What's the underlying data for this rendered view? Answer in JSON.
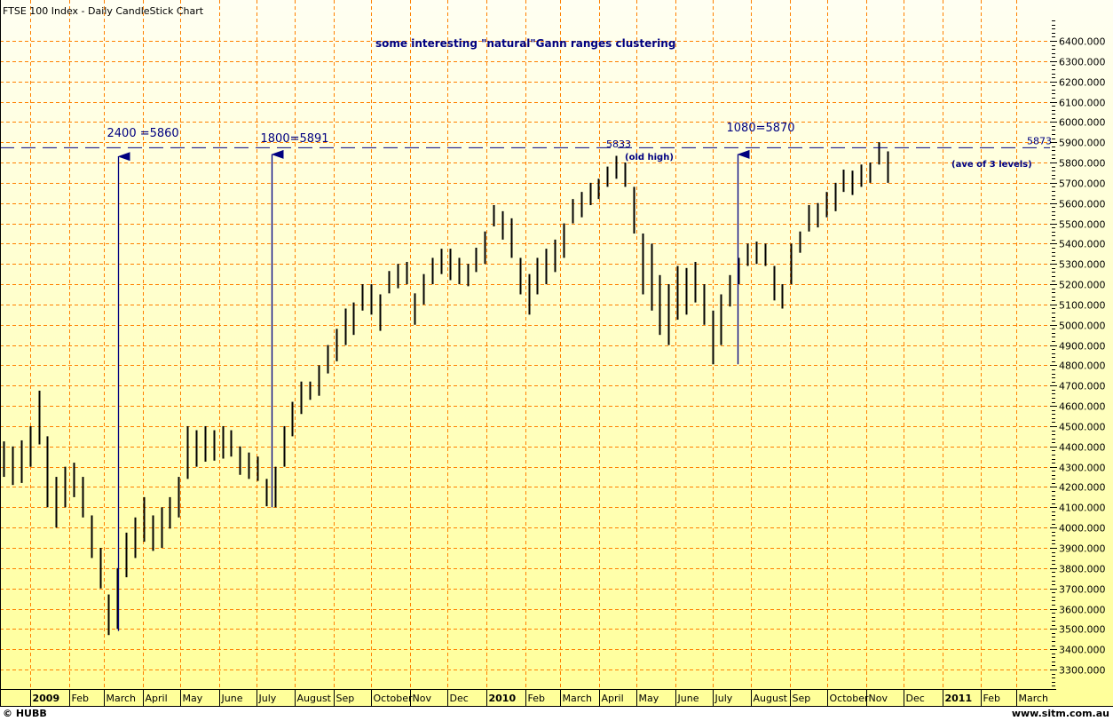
{
  "chart_data": {
    "type": "candlestick",
    "title": "FTSE 100 Index - Daily CandleStick Chart",
    "subtitle": "some interesting \"natural\"Gann ranges clustering",
    "xlabel": "",
    "ylabel": "",
    "ylim": [
      3300,
      6400
    ],
    "y_ticks": [
      "3300.000",
      "3400.000",
      "3500.000",
      "3600.000",
      "3700.000",
      "3800.000",
      "3900.000",
      "4000.000",
      "4100.000",
      "4200.000",
      "4300.000",
      "4400.000",
      "4500.000",
      "4600.000",
      "4700.000",
      "4800.000",
      "4900.000",
      "5000.000",
      "5100.000",
      "5200.000",
      "5300.000",
      "5400.000",
      "5500.000",
      "5600.000",
      "5700.000",
      "5800.000",
      "5900.000",
      "6000.000",
      "6100.000",
      "6200.000",
      "6300.000",
      "6400.000"
    ],
    "x_ticks": [
      {
        "label": "2009",
        "date": "2009-01-01",
        "bold": true
      },
      {
        "label": "Feb",
        "date": "2009-02-01"
      },
      {
        "label": "March",
        "date": "2009-03-01"
      },
      {
        "label": "April",
        "date": "2009-04-01"
      },
      {
        "label": "May",
        "date": "2009-05-01"
      },
      {
        "label": "June",
        "date": "2009-06-01"
      },
      {
        "label": "July",
        "date": "2009-07-01"
      },
      {
        "label": "August",
        "date": "2009-08-01"
      },
      {
        "label": "Sep",
        "date": "2009-09-01"
      },
      {
        "label": "October",
        "date": "2009-10-01"
      },
      {
        "label": "Nov",
        "date": "2009-11-01"
      },
      {
        "label": "Dec",
        "date": "2009-12-01"
      },
      {
        "label": "2010",
        "date": "2010-01-01",
        "bold": true
      },
      {
        "label": "Feb",
        "date": "2010-02-01"
      },
      {
        "label": "March",
        "date": "2010-03-01"
      },
      {
        "label": "April",
        "date": "2010-04-01"
      },
      {
        "label": "May",
        "date": "2010-05-01"
      },
      {
        "label": "June",
        "date": "2010-06-01"
      },
      {
        "label": "July",
        "date": "2010-07-01"
      },
      {
        "label": "August",
        "date": "2010-08-01"
      },
      {
        "label": "Sep",
        "date": "2010-09-01"
      },
      {
        "label": "October",
        "date": "2010-10-01"
      },
      {
        "label": "Nov",
        "date": "2010-11-01"
      },
      {
        "label": "Dec",
        "date": "2010-12-01"
      },
      {
        "label": "2011",
        "date": "2011-01-01",
        "bold": true
      },
      {
        "label": "Feb",
        "date": "2011-02-01"
      },
      {
        "label": "March",
        "date": "2011-03-01"
      }
    ],
    "grid": true,
    "series_start": "2008-12-08",
    "series_interval_days": 7,
    "high": [
      4425,
      4400,
      4430,
      4500,
      4675,
      4450,
      4250,
      4300,
      4320,
      4250,
      4060,
      3900,
      3670,
      3800,
      3975,
      4050,
      4150,
      4060,
      4100,
      4150,
      4250,
      4500,
      4480,
      4500,
      4480,
      4500,
      4480,
      4400,
      4370,
      4350,
      4240,
      4300,
      4500,
      4620,
      4720,
      4720,
      4800,
      4900,
      4980,
      5080,
      5110,
      5200,
      5200,
      5150,
      5265,
      5300,
      5310,
      5155,
      5250,
      5330,
      5375,
      5375,
      5330,
      5300,
      5380,
      5460,
      5590,
      5560,
      5525,
      5330,
      5250,
      5330,
      5375,
      5420,
      5500,
      5620,
      5655,
      5700,
      5720,
      5780,
      5833,
      5800,
      5680,
      5450,
      5400,
      5245,
      5200,
      5290,
      5280,
      5310,
      5200,
      5070,
      5150,
      5245,
      5330,
      5400,
      5410,
      5400,
      5290,
      5200,
      5400,
      5460,
      5590,
      5600,
      5655,
      5700,
      5765,
      5760,
      5790,
      5800,
      5900,
      5855
    ],
    "low": [
      4250,
      4210,
      4220,
      4300,
      4410,
      4100,
      4000,
      4100,
      4150,
      4050,
      3850,
      3700,
      3470,
      3500,
      3755,
      3850,
      3930,
      3885,
      3900,
      3995,
      4050,
      4240,
      4300,
      4325,
      4330,
      4340,
      4350,
      4260,
      4240,
      4230,
      4105,
      4100,
      4300,
      4450,
      4560,
      4630,
      4650,
      4760,
      4820,
      4900,
      4950,
      5070,
      5050,
      4970,
      5155,
      5180,
      5200,
      5000,
      5100,
      5200,
      5250,
      5220,
      5200,
      5190,
      5260,
      5300,
      5485,
      5420,
      5330,
      5150,
      5050,
      5150,
      5200,
      5260,
      5330,
      5500,
      5530,
      5590,
      5620,
      5680,
      5720,
      5680,
      5450,
      5150,
      5070,
      4950,
      4900,
      5025,
      5050,
      5110,
      5000,
      4805,
      4900,
      5090,
      5200,
      5290,
      5300,
      5290,
      5120,
      5080,
      5200,
      5355,
      5460,
      5480,
      5530,
      5560,
      5655,
      5640,
      5680,
      5700,
      5790,
      5700
    ],
    "reference_line": {
      "value": 5873,
      "label": "5873",
      "note": "(ave of 3 levels)"
    },
    "annotations": [
      {
        "label": "2400 =5860",
        "date": "2009-03-12",
        "from": 3490,
        "to": 5830
      },
      {
        "label": "1800=5891",
        "date": "2009-07-13",
        "from": 4100,
        "to": 5840
      },
      {
        "label": "1080=5870",
        "date": "2010-07-21",
        "from": 4805,
        "to": 5840
      }
    ],
    "old_high": {
      "value": "5833",
      "note": "(old high)"
    }
  },
  "footer": {
    "left": "© HUBB",
    "right": "www.sitm.com.au"
  },
  "colors": {
    "grid": "#ff8000",
    "bars": "#000000",
    "annotation": "#000080",
    "bg_top": "#fffff2",
    "bg_bottom": "#ffff99"
  }
}
